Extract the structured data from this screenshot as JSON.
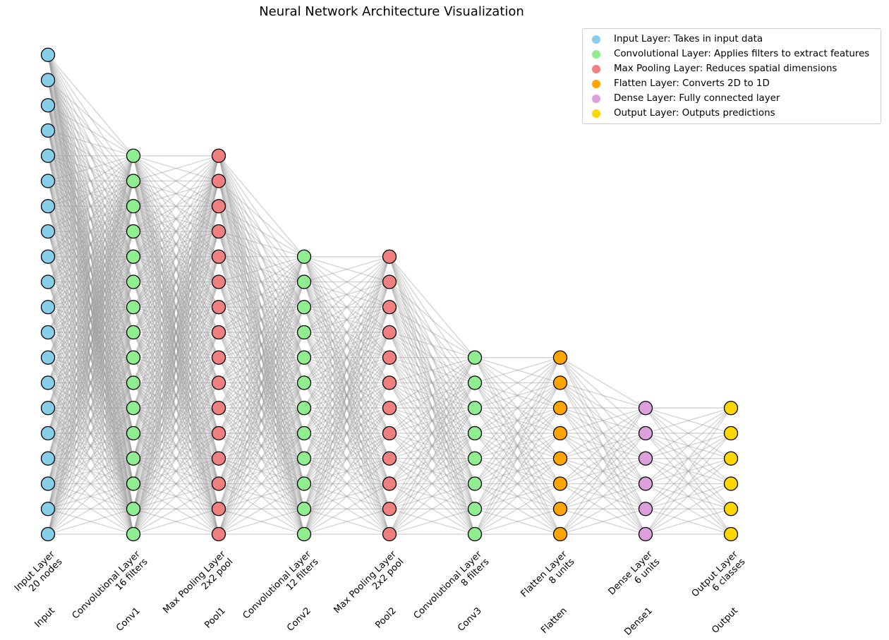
{
  "title": "Neural Network Architecture Visualization",
  "legend": [
    {
      "label": "Input Layer: Takes in input data",
      "color": "#87CEEB"
    },
    {
      "label": "Convolutional Layer: Applies filters to extract features",
      "color": "#90EE90"
    },
    {
      "label": "Max Pooling Layer: Reduces spatial dimensions",
      "color": "#F08080"
    },
    {
      "label": "Flatten Layer: Converts 2D to 1D",
      "color": "#FFA500"
    },
    {
      "label": "Dense Layer: Fully connected layer",
      "color": "#DDA0DD"
    },
    {
      "label": "Output Layer: Outputs predictions",
      "color": "#FFD700"
    }
  ],
  "layers": [
    {
      "name": "Input",
      "line1": "Input Layer",
      "line2": "20 nodes",
      "nodes": 20,
      "color": "#87CEEB"
    },
    {
      "name": "Conv1",
      "line1": "Convolutional Layer",
      "line2": "16 filters",
      "nodes": 16,
      "color": "#90EE90"
    },
    {
      "name": "Pool1",
      "line1": "Max Pooling Layer",
      "line2": "2x2 pool",
      "nodes": 16,
      "color": "#F08080"
    },
    {
      "name": "Conv2",
      "line1": "Convolutional Layer",
      "line2": "12 filters",
      "nodes": 12,
      "color": "#90EE90"
    },
    {
      "name": "Pool2",
      "line1": "Max Pooling Layer",
      "line2": "2x2 pool",
      "nodes": 12,
      "color": "#F08080"
    },
    {
      "name": "Conv3",
      "line1": "Convolutional Layer",
      "line2": "8 filters",
      "nodes": 8,
      "color": "#90EE90"
    },
    {
      "name": "Flatten",
      "line1": "Flatten Layer",
      "line2": "8 units",
      "nodes": 8,
      "color": "#FFA500"
    },
    {
      "name": "Dense1",
      "line1": "Dense Layer",
      "line2": "6 units",
      "nodes": 6,
      "color": "#DDA0DD"
    },
    {
      "name": "Output",
      "line1": "Output Layer",
      "line2": "6 classes",
      "nodes": 6,
      "color": "#FFD700"
    }
  ]
}
